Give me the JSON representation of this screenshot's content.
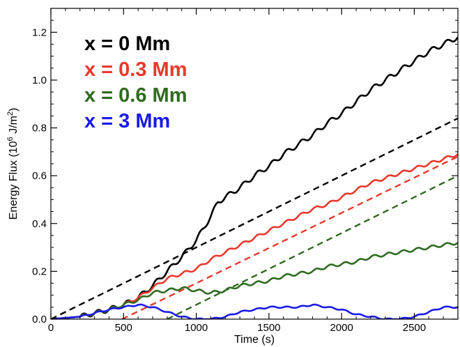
{
  "chart_data": {
    "type": "line",
    "title": "",
    "xlabel": "Time (s)",
    "ylabel_parts": {
      "main": "Energy Flux (10",
      "sup1": "6",
      "mid": " J/m",
      "sup2": "2",
      "end": ")"
    },
    "xlim": [
      0,
      2800
    ],
    "ylim": [
      0,
      1.3
    ],
    "x_ticks": [
      0,
      500,
      1000,
      1500,
      2000,
      2500
    ],
    "x_tick_labels": [
      "0",
      "500",
      "1000",
      "1500",
      "2000",
      "2500"
    ],
    "y_ticks": [
      0.0,
      0.2,
      0.4,
      0.6,
      0.8,
      1.0,
      1.2
    ],
    "y_tick_labels": [
      "0.0",
      "0.2",
      "0.4",
      "0.6",
      "0.8",
      "1.0",
      "1.2"
    ],
    "grid": false,
    "legend_position": "top-left",
    "series": [
      {
        "name": "x = 0 Mm",
        "color": "#000000",
        "style": "solid",
        "x": [
          0,
          200,
          400,
          500,
          600,
          700,
          800,
          900,
          1000,
          1100,
          1150,
          1200,
          1300,
          1400,
          1500,
          1600,
          1700,
          1800,
          1900,
          2000,
          2100,
          2200,
          2300,
          2400,
          2500,
          2600,
          2700,
          2800
        ],
        "y": [
          0.0,
          0.01,
          0.04,
          0.06,
          0.09,
          0.14,
          0.2,
          0.26,
          0.33,
          0.43,
          0.49,
          0.51,
          0.55,
          0.6,
          0.64,
          0.69,
          0.73,
          0.77,
          0.82,
          0.86,
          0.91,
          0.96,
          1.0,
          1.04,
          1.08,
          1.12,
          1.15,
          1.18
        ]
      },
      {
        "name": "x = 0.3 Mm",
        "color": "#e8392c",
        "style": "solid",
        "x": [
          0,
          200,
          400,
          500,
          600,
          700,
          800,
          900,
          1000,
          1100,
          1200,
          1300,
          1400,
          1500,
          1600,
          1700,
          1800,
          1900,
          2000,
          2100,
          2200,
          2300,
          2400,
          2500,
          2600,
          2700,
          2800
        ],
        "y": [
          0.0,
          0.01,
          0.04,
          0.06,
          0.09,
          0.13,
          0.17,
          0.19,
          0.21,
          0.25,
          0.28,
          0.31,
          0.34,
          0.37,
          0.4,
          0.43,
          0.46,
          0.48,
          0.51,
          0.54,
          0.57,
          0.59,
          0.61,
          0.63,
          0.65,
          0.67,
          0.69
        ]
      },
      {
        "name": "x = 0.6 Mm",
        "color": "#2f6b1f",
        "style": "solid",
        "x": [
          0,
          200,
          400,
          500,
          600,
          700,
          800,
          900,
          1000,
          1100,
          1200,
          1300,
          1400,
          1500,
          1600,
          1700,
          1800,
          1900,
          2000,
          2100,
          2200,
          2300,
          2400,
          2500,
          2600,
          2700,
          2800
        ],
        "y": [
          0.0,
          0.01,
          0.04,
          0.06,
          0.08,
          0.11,
          0.12,
          0.13,
          0.12,
          0.11,
          0.12,
          0.14,
          0.15,
          0.16,
          0.18,
          0.19,
          0.2,
          0.22,
          0.23,
          0.24,
          0.26,
          0.27,
          0.28,
          0.29,
          0.3,
          0.31,
          0.32
        ]
      },
      {
        "name": "x = 3 Mm",
        "color": "#1a1aeb",
        "style": "solid",
        "x": [
          0,
          200,
          400,
          500,
          600,
          700,
          800,
          900,
          1000,
          1100,
          1200,
          1300,
          1400,
          1500,
          1600,
          1700,
          1800,
          1900,
          2000,
          2100,
          2200,
          2300,
          2400,
          2500,
          2600,
          2700,
          2800
        ],
        "y": [
          0.0,
          0.01,
          0.04,
          0.05,
          0.06,
          0.05,
          0.03,
          0.01,
          0.0,
          0.0,
          0.01,
          0.03,
          0.04,
          0.05,
          0.05,
          0.05,
          0.06,
          0.05,
          0.04,
          0.02,
          0.01,
          0.0,
          0.0,
          0.01,
          0.03,
          0.05,
          0.05
        ]
      }
    ],
    "fit_lines": [
      {
        "color": "#000000",
        "style": "dashed",
        "x": [
          0,
          2800
        ],
        "y": [
          0.0,
          0.84
        ]
      },
      {
        "color": "#e8392c",
        "style": "dashed",
        "x": [
          490,
          2800
        ],
        "y": [
          0.0,
          0.68
        ]
      },
      {
        "color": "#2f6b1f",
        "style": "dashed",
        "x": [
          800,
          2800
        ],
        "y": [
          0.0,
          0.6
        ]
      }
    ]
  }
}
